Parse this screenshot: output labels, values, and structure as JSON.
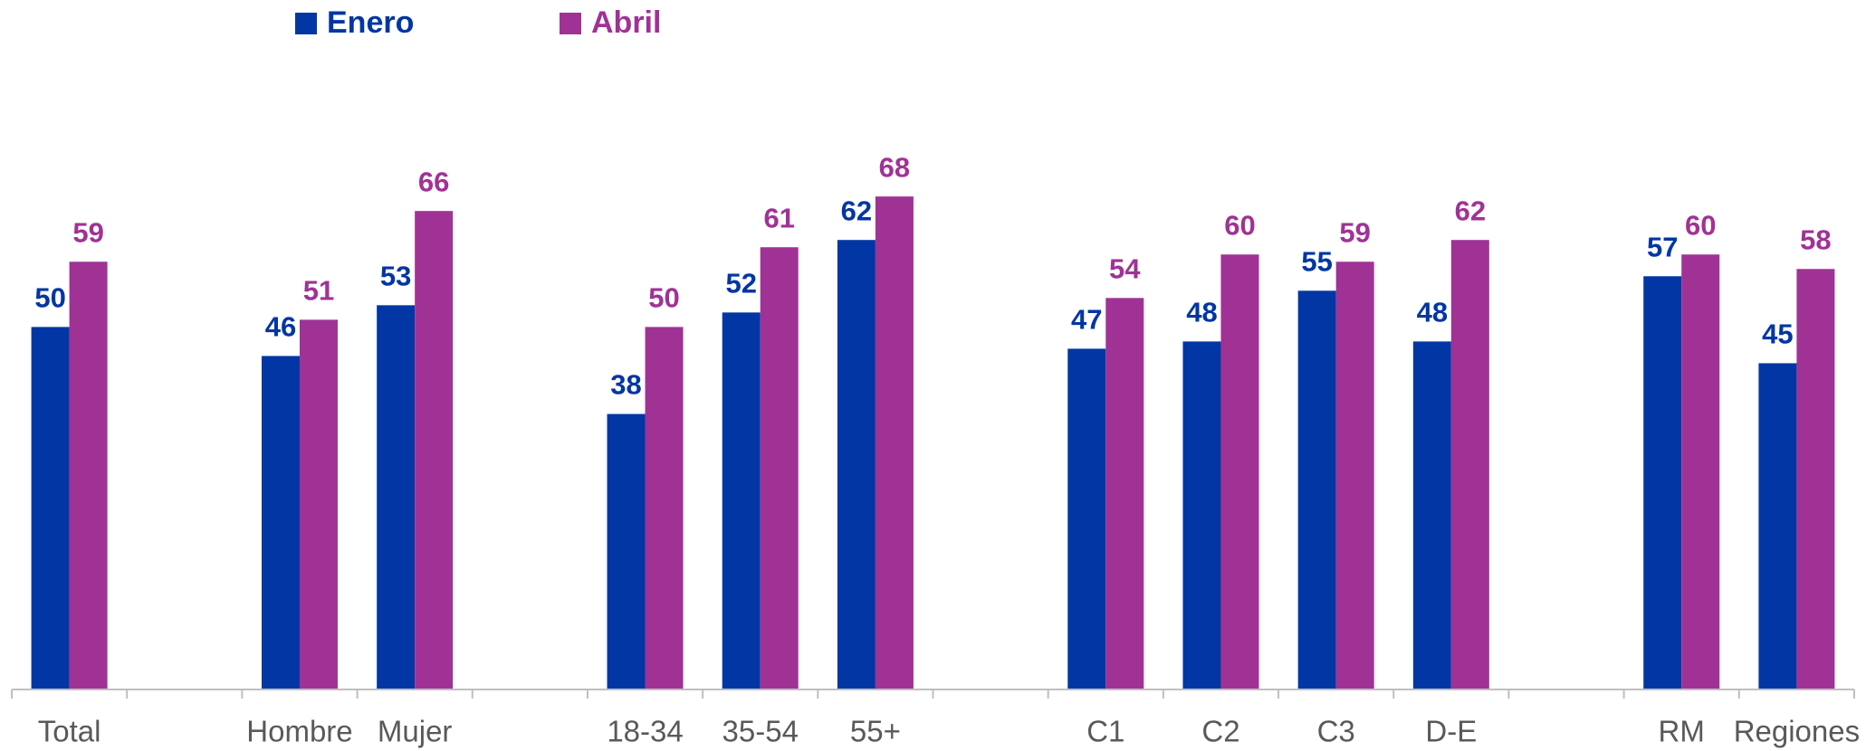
{
  "chart_data": {
    "type": "bar",
    "categories": [
      "Total",
      null,
      "Hombre",
      "Mujer",
      null,
      "18-34",
      "35-54",
      "55+",
      null,
      "C1",
      "C2",
      "C3",
      "D-E",
      null,
      "RM",
      "Regiones"
    ],
    "series": [
      {
        "name": "Enero",
        "color": "#0236a4",
        "values": [
          50,
          null,
          46,
          53,
          null,
          38,
          52,
          62,
          null,
          47,
          48,
          55,
          48,
          null,
          57,
          45
        ]
      },
      {
        "name": "Abril",
        "color": "#a03296",
        "values": [
          59,
          null,
          51,
          66,
          null,
          50,
          61,
          68,
          null,
          54,
          60,
          59,
          62,
          null,
          60,
          58
        ]
      }
    ],
    "ylim": [
      0,
      80
    ]
  }
}
